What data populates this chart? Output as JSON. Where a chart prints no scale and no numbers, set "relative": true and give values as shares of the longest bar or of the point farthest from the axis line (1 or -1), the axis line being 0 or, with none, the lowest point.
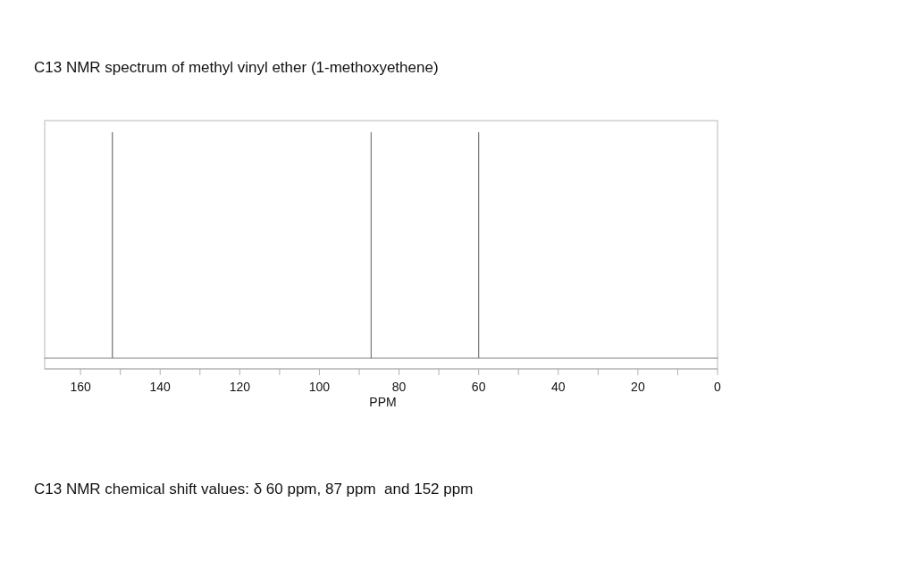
{
  "chart_data": {
    "type": "line",
    "title": "C13 NMR spectrum of methyl vinyl ether (1-methoxyethene)",
    "xlabel": "PPM",
    "relative": true,
    "x": [
      169,
      152,
      152,
      152,
      87,
      87,
      87,
      60,
      60,
      60,
      0
    ],
    "series": [
      {
        "color": "#7f7f7f",
        "values": [
          0,
          0,
          1,
          0,
          0,
          1,
          0,
          0,
          1,
          0,
          0
        ]
      }
    ],
    "xlim": [
      169,
      0
    ],
    "xticks": [
      160,
      {
        "value": 150,
        "label": null
      },
      140,
      {
        "value": 130,
        "label": null
      },
      120,
      {
        "value": 110,
        "label": null
      },
      100,
      {
        "value": 90,
        "label": null
      },
      80,
      {
        "value": 70,
        "label": null
      },
      60,
      {
        "value": 50,
        "label": null
      },
      40,
      {
        "value": 30,
        "label": null
      },
      20,
      {
        "value": 10,
        "label": null
      },
      0
    ],
    "annotations": [
      "C13 NMR chemical shift values: δ 60 ppm, 87 ppm  and 152 ppm"
    ]
  }
}
